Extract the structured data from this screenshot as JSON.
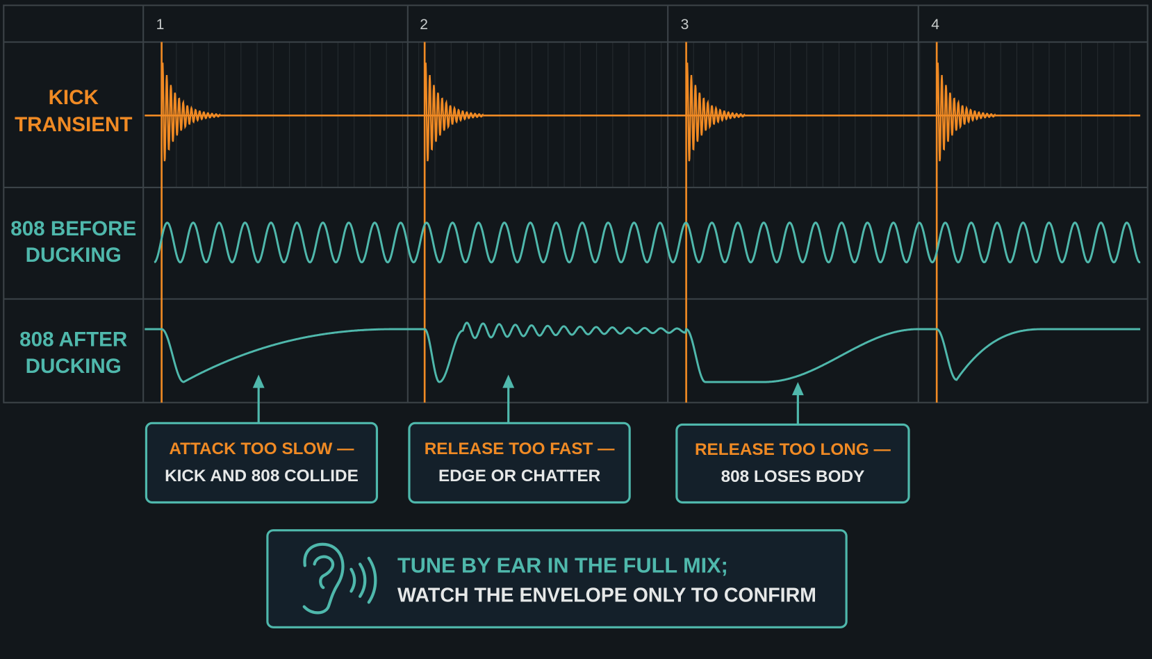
{
  "bar_numbers": [
    "1",
    "2",
    "3",
    "4"
  ],
  "rows": [
    {
      "label_lines": [
        "KICK",
        "TRANSIENT"
      ]
    },
    {
      "label_lines": [
        "808 BEFORE",
        "DUCKING"
      ]
    },
    {
      "label_lines": [
        "808 AFTER",
        "DUCKING"
      ]
    }
  ],
  "callouts": [
    {
      "title": "ATTACK TOO SLOW —",
      "text": "KICK AND 808 COLLIDE"
    },
    {
      "title": "RELEASE TOO FAST —",
      "text": "EDGE OR CHATTER"
    },
    {
      "title": "RELEASE TOO LONG —",
      "text": "808 LOSES BODY"
    }
  ],
  "footer": {
    "lines": [
      "TUNE BY EAR IN THE FULL MIX;",
      "WATCH THE ENVELOPE ONLY TO CONFIRM"
    ]
  }
}
